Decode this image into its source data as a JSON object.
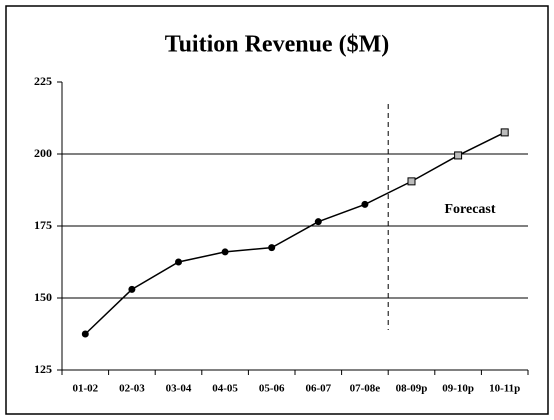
{
  "chart_data": {
    "type": "line",
    "title": "Tuition Revenue ($M)",
    "categories": [
      "01-02",
      "02-03",
      "03-04",
      "04-05",
      "05-06",
      "06-07",
      "07-08e",
      "08-09p",
      "09-10p",
      "10-11p"
    ],
    "series": [
      {
        "color": "#000000",
        "values": [
          137.5,
          153,
          162.5,
          166,
          167.5,
          176.5,
          182.5,
          190.5,
          199.5,
          207.5
        ]
      }
    ],
    "forecast_from": "08-09p",
    "annotation": "Forecast",
    "ylim": [
      125,
      225
    ],
    "yticks": [
      125,
      150,
      175,
      200,
      225
    ],
    "grid": true
  }
}
